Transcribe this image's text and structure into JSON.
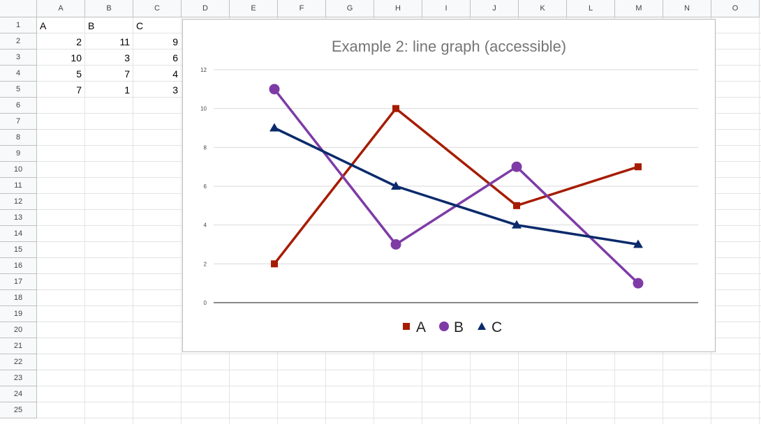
{
  "spreadsheet": {
    "columns": [
      "A",
      "B",
      "C",
      "D",
      "E",
      "F",
      "G",
      "H",
      "I",
      "J",
      "K",
      "L",
      "M",
      "N",
      "O"
    ],
    "rows": [
      "1",
      "2",
      "3",
      "4",
      "5",
      "6",
      "7",
      "8",
      "9",
      "10",
      "11",
      "12",
      "13",
      "14",
      "15",
      "16",
      "17",
      "18",
      "19",
      "20",
      "21",
      "22",
      "23",
      "24",
      "25"
    ],
    "cells": [
      {
        "ref": "A1",
        "value": "A",
        "type": "text"
      },
      {
        "ref": "B1",
        "value": "B",
        "type": "text"
      },
      {
        "ref": "C1",
        "value": "C",
        "type": "text"
      },
      {
        "ref": "A2",
        "value": "2",
        "type": "number"
      },
      {
        "ref": "B2",
        "value": "11",
        "type": "number"
      },
      {
        "ref": "C2",
        "value": "9",
        "type": "number"
      },
      {
        "ref": "A3",
        "value": "10",
        "type": "number"
      },
      {
        "ref": "B3",
        "value": "3",
        "type": "number"
      },
      {
        "ref": "C3",
        "value": "6",
        "type": "number"
      },
      {
        "ref": "A4",
        "value": "5",
        "type": "number"
      },
      {
        "ref": "B4",
        "value": "7",
        "type": "number"
      },
      {
        "ref": "C4",
        "value": "4",
        "type": "number"
      },
      {
        "ref": "A5",
        "value": "7",
        "type": "number"
      },
      {
        "ref": "B5",
        "value": "1",
        "type": "number"
      },
      {
        "ref": "C5",
        "value": "3",
        "type": "number"
      }
    ]
  },
  "chart_data": {
    "type": "line",
    "title": "Example 2: line graph (accessible)",
    "xlabel": "",
    "ylabel": "",
    "ylim": [
      0,
      12
    ],
    "yticks": [
      "0",
      "2",
      "4",
      "6",
      "8",
      "10",
      "12"
    ],
    "grid": true,
    "legend_position": "bottom",
    "x": [
      1,
      2,
      3,
      4
    ],
    "series": [
      {
        "name": "A",
        "values": [
          2,
          10,
          5,
          7
        ],
        "color": "#a61c00",
        "marker": "square"
      },
      {
        "name": "B",
        "values": [
          11,
          3,
          7,
          1
        ],
        "color": "#7e3ba6",
        "marker": "circle"
      },
      {
        "name": "C",
        "values": [
          9,
          6,
          4,
          3
        ],
        "color": "#0b2a6b",
        "marker": "triangle"
      }
    ]
  }
}
